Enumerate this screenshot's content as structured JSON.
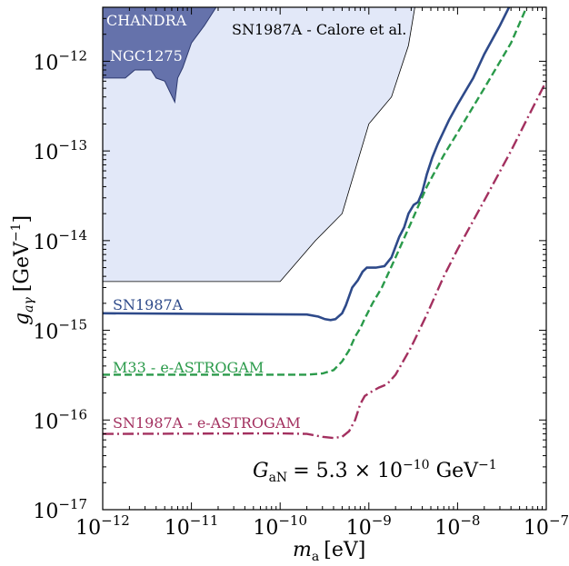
{
  "colors": {
    "calore_fill": "#e2e8f8",
    "chandra_fill": "#6572ab",
    "sn1987a_line": "#2e4a8a",
    "m33_line": "#2a9a4a",
    "sn_eastrogam_line": "#a3305f"
  },
  "chart_data": {
    "type": "line",
    "title": "",
    "xlabel": "m_a [eV]",
    "ylabel": "g_aγ [GeV⁻¹]",
    "xscale": "log",
    "yscale": "log",
    "xlim": [
      1e-12,
      1e-07
    ],
    "ylim": [
      1e-17,
      4e-12
    ],
    "grid": false,
    "x_ticks": [
      {
        "base": "10",
        "exp": "−12",
        "value": 1e-12
      },
      {
        "base": "10",
        "exp": "−11",
        "value": 1e-11
      },
      {
        "base": "10",
        "exp": "−10",
        "value": 1e-10
      },
      {
        "base": "10",
        "exp": "−9",
        "value": 1e-09
      },
      {
        "base": "10",
        "exp": "−8",
        "value": 1e-08
      },
      {
        "base": "10",
        "exp": "−7",
        "value": 1e-07
      }
    ],
    "y_ticks": [
      {
        "base": "10",
        "exp": "−17",
        "value": 1e-17
      },
      {
        "base": "10",
        "exp": "−16",
        "value": 1e-16
      },
      {
        "base": "10",
        "exp": "−15",
        "value": 1e-15
      },
      {
        "base": "10",
        "exp": "−14",
        "value": 1e-14
      },
      {
        "base": "10",
        "exp": "−13",
        "value": 1e-13
      },
      {
        "base": "10",
        "exp": "−12",
        "value": 1e-12
      }
    ],
    "xlabel_parts": {
      "var": "m",
      "sub": "a",
      "unit": "[eV]"
    },
    "ylabel_parts": {
      "var": "g",
      "sub": "aγ",
      "unit_pre": "[GeV",
      "unit_exp": "−1",
      "unit_post": "]"
    },
    "regions": [
      {
        "name": "SN1987A - Calore et al.",
        "points": [
          [
            1e-12,
            3.5e-15
          ],
          [
            1e-10,
            3.5e-15
          ],
          [
            2.5e-10,
            1e-14
          ],
          [
            5e-10,
            2e-14
          ],
          [
            1e-09,
            2e-13
          ],
          [
            1.8e-09,
            4e-13
          ],
          [
            2.8e-09,
            1.5e-12
          ],
          [
            3.3e-09,
            4e-12
          ]
        ]
      },
      {
        "name": "CHANDRA NGC1275",
        "points": [
          [
            1e-12,
            6.5e-13
          ],
          [
            1.8e-12,
            6.5e-13
          ],
          [
            2.3e-12,
            8e-13
          ],
          [
            3.5e-12,
            8e-13
          ],
          [
            4e-12,
            6.5e-13
          ],
          [
            5e-12,
            6e-13
          ],
          [
            6.5e-12,
            3.5e-13
          ],
          [
            7e-12,
            6.5e-13
          ],
          [
            8e-12,
            8.5e-13
          ],
          [
            1e-11,
            1.6e-12
          ],
          [
            1.4e-11,
            2.5e-12
          ],
          [
            1.9e-11,
            4e-12
          ]
        ]
      }
    ],
    "series": [
      {
        "name": "SN1987A",
        "points": [
          [
            1e-12,
            1.55e-15
          ],
          [
            2e-10,
            1.5e-15
          ],
          [
            2.7e-10,
            1.42e-15
          ],
          [
            3.2e-10,
            1.33e-15
          ],
          [
            3.7e-10,
            1.3e-15
          ],
          [
            4.2e-10,
            1.33e-15
          ],
          [
            5e-10,
            1.55e-15
          ],
          [
            5.5e-10,
            1.9e-15
          ],
          [
            6.5e-10,
            3e-15
          ],
          [
            7.5e-10,
            3.6e-15
          ],
          [
            8.5e-10,
            4.5e-15
          ],
          [
            9.5e-10,
            5e-15
          ],
          [
            1.2e-09,
            5e-15
          ],
          [
            1.5e-09,
            5.2e-15
          ],
          [
            1.8e-09,
            6.5e-15
          ],
          [
            2.2e-09,
            1.1e-14
          ],
          [
            2.5e-09,
            1.4e-14
          ],
          [
            2.8e-09,
            2e-14
          ],
          [
            3.2e-09,
            2.5e-14
          ],
          [
            3.6e-09,
            2.7e-14
          ],
          [
            4e-09,
            3.5e-14
          ],
          [
            4.5e-09,
            5.5e-14
          ],
          [
            5.2e-09,
            8.5e-14
          ],
          [
            6e-09,
            1.2e-13
          ],
          [
            8e-09,
            2.2e-13
          ],
          [
            1e-08,
            3.3e-13
          ],
          [
            1.5e-08,
            6.5e-13
          ],
          [
            2e-08,
            1.2e-12
          ],
          [
            3e-08,
            2.5e-12
          ],
          [
            3.8e-08,
            4e-12
          ]
        ]
      },
      {
        "name": "M33 - e-ASTROGAM",
        "points": [
          [
            1e-12,
            3.2e-16
          ],
          [
            2e-10,
            3.2e-16
          ],
          [
            3e-10,
            3.3e-16
          ],
          [
            4e-10,
            3.6e-16
          ],
          [
            5e-10,
            4.5e-16
          ],
          [
            6e-10,
            6e-16
          ],
          [
            7e-10,
            8.5e-16
          ],
          [
            8e-10,
            1.05e-15
          ],
          [
            9e-10,
            1.35e-15
          ],
          [
            1.1e-09,
            2e-15
          ],
          [
            1.4e-09,
            3e-15
          ],
          [
            2e-09,
            6.5e-15
          ],
          [
            3e-09,
            1.6e-14
          ],
          [
            4.5e-09,
            4e-14
          ],
          [
            7e-09,
            9e-14
          ],
          [
            1e-08,
            1.6e-13
          ],
          [
            2e-08,
            5e-13
          ],
          [
            4e-08,
            1.6e-12
          ],
          [
            6e-08,
            4e-12
          ]
        ]
      },
      {
        "name": "SN1987A - e-ASTROGAM",
        "points": [
          [
            1e-12,
            7e-17
          ],
          [
            1e-10,
            7.1e-17
          ],
          [
            2e-10,
            7e-17
          ],
          [
            3e-10,
            6.5e-17
          ],
          [
            4e-10,
            6.3e-17
          ],
          [
            5e-10,
            6.5e-17
          ],
          [
            6e-10,
            7.5e-17
          ],
          [
            7e-10,
            1e-16
          ],
          [
            8e-10,
            1.5e-16
          ],
          [
            9e-10,
            1.85e-16
          ],
          [
            1.1e-09,
            2.1e-16
          ],
          [
            1.3e-09,
            2.3e-16
          ],
          [
            1.6e-09,
            2.5e-16
          ],
          [
            2e-09,
            3.2e-16
          ],
          [
            3e-09,
            6.5e-16
          ],
          [
            4.5e-09,
            1.5e-15
          ],
          [
            7e-09,
            4e-15
          ],
          [
            1e-08,
            8e-15
          ],
          [
            2e-08,
            2.8e-14
          ],
          [
            4e-08,
            1e-13
          ],
          [
            7e-08,
            3e-13
          ],
          [
            1e-07,
            6e-13
          ]
        ]
      }
    ],
    "annotations": {
      "calore_label": "SN1987A - Calore et al.",
      "chandra_label": "CHANDRA",
      "ngc_label": "NGC1275",
      "sn1987a_label": "SN1987A",
      "m33_label": "M33 - e-ASTROGAM",
      "sn_eastrogam_label": "SN1987A - e-ASTROGAM",
      "gan_label_var": "G",
      "gan_label_sub": "aN",
      "gan_label_eq": "= 5.3 × 10",
      "gan_label_exp": "−10",
      "gan_label_unit": "GeV",
      "gan_label_unit_exp": "−1"
    }
  }
}
